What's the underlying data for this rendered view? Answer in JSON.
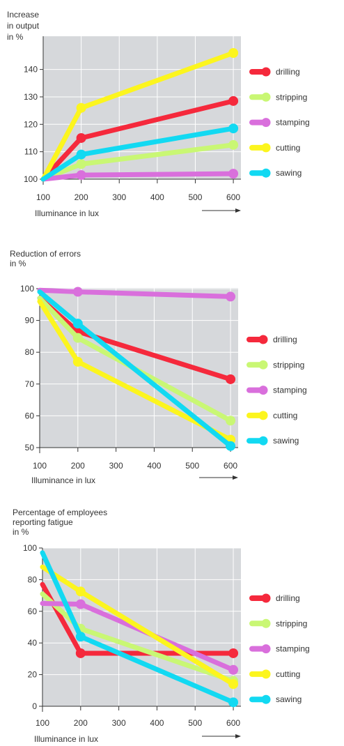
{
  "chart_data": [
    {
      "type": "line",
      "title": [
        "Increase",
        "in output",
        "in %"
      ],
      "xlabel": "Illuminance in lux",
      "x_ticks": [
        100,
        200,
        300,
        400,
        500,
        600
      ],
      "y_ticks": [
        100,
        110,
        120,
        130,
        140
      ],
      "ylim": [
        100,
        146
      ],
      "xlim": [
        100,
        620
      ],
      "grid": true,
      "legend_position": "right",
      "series": [
        {
          "name": "drilling",
          "color": "#f5293c",
          "x": [
            100,
            200,
            600
          ],
          "y": [
            100,
            115,
            128.5
          ]
        },
        {
          "name": "stripping",
          "color": "#c9f774",
          "x": [
            100,
            200,
            600
          ],
          "y": [
            100,
            105.5,
            112.5
          ]
        },
        {
          "name": "stamping",
          "color": "#d96fdc",
          "x": [
            100,
            200,
            600
          ],
          "y": [
            100,
            101.5,
            102
          ]
        },
        {
          "name": "cutting",
          "color": "#fcf51e",
          "x": [
            100,
            200,
            600
          ],
          "y": [
            100,
            126,
            146
          ]
        },
        {
          "name": "sawing",
          "color": "#12d9f2",
          "x": [
            100,
            200,
            600
          ],
          "y": [
            100,
            109,
            118.5
          ]
        }
      ]
    },
    {
      "type": "line",
      "title": [
        "Reduction of errors",
        "in %"
      ],
      "xlabel": "Illuminance in lux",
      "x_ticks": [
        100,
        200,
        300,
        400,
        500,
        600
      ],
      "y_ticks": [
        50,
        60,
        70,
        80,
        90,
        100
      ],
      "ylim": [
        50,
        100
      ],
      "xlim": [
        100,
        620
      ],
      "grid": true,
      "legend_position": "right",
      "series": [
        {
          "name": "drilling",
          "color": "#f5293c",
          "x": [
            100,
            200,
            600
          ],
          "y": [
            97,
            86.5,
            71.5
          ]
        },
        {
          "name": "stripping",
          "color": "#c9f774",
          "x": [
            100,
            200,
            600
          ],
          "y": [
            97,
            84.5,
            58.5
          ]
        },
        {
          "name": "stamping",
          "color": "#d96fdc",
          "x": [
            100,
            200,
            600
          ],
          "y": [
            99.5,
            99,
            97.5
          ]
        },
        {
          "name": "cutting",
          "color": "#fcf51e",
          "x": [
            100,
            200,
            600
          ],
          "y": [
            96,
            77,
            52.5
          ]
        },
        {
          "name": "sawing",
          "color": "#12d9f2",
          "x": [
            100,
            200,
            600
          ],
          "y": [
            99,
            89,
            50.5
          ]
        }
      ]
    },
    {
      "type": "line",
      "title": [
        "Percentage of employees",
        "reporting fatigue",
        "in %"
      ],
      "xlabel": "Illuminance in lux",
      "x_ticks": [
        100,
        200,
        300,
        400,
        500,
        600
      ],
      "y_ticks": [
        0,
        20,
        40,
        60,
        80,
        100
      ],
      "ylim": [
        0,
        100
      ],
      "xlim": [
        100,
        620
      ],
      "grid": true,
      "legend_position": "right",
      "series": [
        {
          "name": "drilling",
          "color": "#f5293c",
          "x": [
            100,
            200,
            600
          ],
          "y": [
            77,
            33.5,
            33.5
          ]
        },
        {
          "name": "stripping",
          "color": "#c9f774",
          "x": [
            100,
            200,
            600
          ],
          "y": [
            71,
            49,
            16
          ]
        },
        {
          "name": "stamping",
          "color": "#d96fdc",
          "x": [
            100,
            200,
            600
          ],
          "y": [
            65,
            64.5,
            23
          ]
        },
        {
          "name": "cutting",
          "color": "#fcf51e",
          "x": [
            100,
            200,
            600
          ],
          "y": [
            88,
            72.5,
            14
          ]
        },
        {
          "name": "sawing",
          "color": "#12d9f2",
          "x": [
            100,
            200,
            600
          ],
          "y": [
            97,
            44,
            2.5
          ]
        }
      ]
    }
  ]
}
